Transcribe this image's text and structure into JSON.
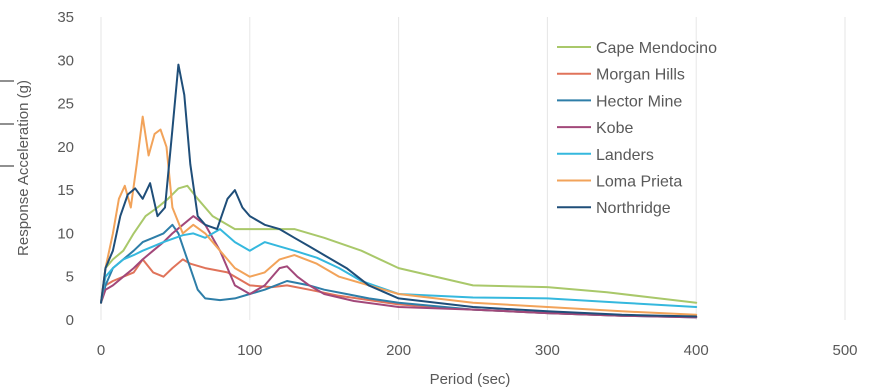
{
  "chart_data": {
    "type": "line",
    "title": "",
    "xlabel": "Period (sec)",
    "ylabel": "Response Acceleration (g)",
    "xlim": [
      0,
      500
    ],
    "ylim": [
      0,
      35
    ],
    "xticks": [
      0,
      100,
      200,
      300,
      400,
      500
    ],
    "yticks": [
      0,
      5,
      10,
      15,
      20,
      25,
      30,
      35
    ],
    "grid": "vertical",
    "legend_position": "top-right",
    "series": [
      {
        "name": "Cape Mendocino",
        "color": "#a9c86a",
        "x": [
          0,
          3,
          8,
          15,
          22,
          30,
          38,
          45,
          52,
          58,
          65,
          75,
          90,
          110,
          130,
          150,
          175,
          200,
          250,
          300,
          340,
          370,
          400
        ],
        "y": [
          2,
          6,
          7,
          8,
          10,
          12,
          13,
          14,
          15.2,
          15.5,
          14,
          12,
          10.5,
          10.5,
          10.5,
          9.5,
          8,
          6,
          4,
          3.8,
          3.2,
          2.6,
          2
        ]
      },
      {
        "name": "Morgan Hills",
        "color": "#e0735a",
        "x": [
          0,
          3,
          8,
          15,
          22,
          28,
          35,
          42,
          48,
          55,
          60,
          70,
          85,
          100,
          115,
          125,
          140,
          160,
          200,
          250,
          300,
          350,
          400
        ],
        "y": [
          2,
          4,
          4.5,
          5,
          5.5,
          7,
          5.5,
          5,
          6,
          7,
          6.5,
          6,
          5.5,
          4,
          3.8,
          4,
          3.5,
          2.8,
          1.8,
          1.2,
          0.8,
          0.5,
          0.4
        ]
      },
      {
        "name": "Hector Mine",
        "color": "#2e7ea8",
        "x": [
          0,
          3,
          8,
          15,
          22,
          28,
          35,
          42,
          48,
          52,
          56,
          60,
          65,
          70,
          80,
          90,
          100,
          110,
          125,
          140,
          150,
          165,
          180,
          200,
          250,
          300,
          350,
          400
        ],
        "y": [
          2,
          4,
          6,
          7,
          8,
          9,
          9.5,
          10,
          11,
          10,
          8,
          6,
          3.5,
          2.5,
          2.3,
          2.5,
          3,
          3.5,
          4.5,
          4,
          3.5,
          3,
          2.5,
          2,
          1.2,
          0.8,
          0.5,
          0.3
        ]
      },
      {
        "name": "Kobe",
        "color": "#a2487a",
        "x": [
          0,
          3,
          8,
          15,
          22,
          28,
          35,
          42,
          48,
          55,
          62,
          70,
          80,
          90,
          100,
          110,
          120,
          125,
          132,
          140,
          150,
          170,
          200,
          250,
          300,
          350,
          400
        ],
        "y": [
          2,
          3.5,
          4,
          5,
          6,
          7,
          8,
          9,
          10,
          11,
          12,
          11,
          8,
          4,
          3,
          4,
          6,
          6.2,
          5,
          4,
          3,
          2.2,
          1.5,
          1.2,
          0.8,
          0.5,
          0.3
        ]
      },
      {
        "name": "Landers",
        "color": "#35b8de",
        "x": [
          0,
          3,
          8,
          15,
          22,
          28,
          35,
          42,
          50,
          55,
          62,
          70,
          80,
          90,
          100,
          110,
          120,
          130,
          145,
          160,
          175,
          200,
          250,
          300,
          350,
          400
        ],
        "y": [
          2,
          5,
          6,
          7,
          7.5,
          8,
          8.5,
          9,
          9.5,
          9.8,
          10,
          9.5,
          10.5,
          9,
          8,
          9,
          8.5,
          8,
          7.2,
          6,
          4.5,
          3,
          2.6,
          2.5,
          2,
          1.5
        ]
      },
      {
        "name": "Loma Prieta",
        "color": "#f2a35a",
        "x": [
          0,
          3,
          8,
          12,
          16,
          20,
          24,
          28,
          32,
          36,
          40,
          44,
          48,
          55,
          62,
          70,
          80,
          90,
          100,
          110,
          120,
          130,
          145,
          160,
          200,
          250,
          300,
          350,
          400
        ],
        "y": [
          2,
          6,
          10,
          14,
          15.5,
          13,
          18,
          23.5,
          19,
          21.5,
          22,
          20,
          13,
          10,
          11,
          10,
          8,
          6,
          5,
          5.5,
          7,
          7.5,
          6.5,
          5,
          3,
          2,
          1.5,
          1,
          0.6
        ]
      },
      {
        "name": "Northridge",
        "color": "#1f4e79",
        "x": [
          0,
          3,
          8,
          13,
          18,
          23,
          28,
          33,
          38,
          43,
          48,
          52,
          56,
          60,
          65,
          70,
          78,
          85,
          90,
          95,
          100,
          110,
          120,
          130,
          140,
          150,
          165,
          180,
          200,
          250,
          300,
          350,
          400
        ],
        "y": [
          2,
          6,
          8,
          12,
          14.5,
          15.2,
          14,
          15.8,
          12,
          13,
          22,
          29.5,
          26,
          18,
          12,
          11,
          10.5,
          14,
          15,
          13,
          12,
          11,
          10.5,
          9.5,
          8.5,
          7.5,
          6,
          4,
          2.5,
          1.5,
          1,
          0.6,
          0.4
        ]
      }
    ]
  }
}
